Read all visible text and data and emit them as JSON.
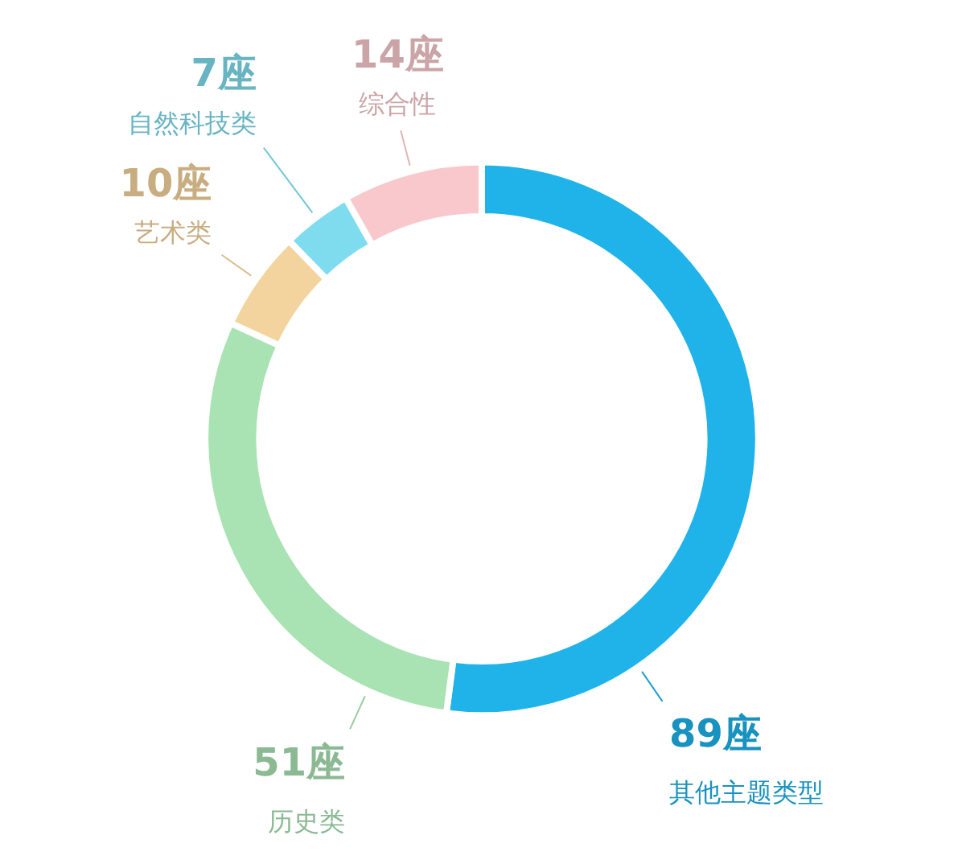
{
  "chart_data": {
    "type": "donut",
    "categories": [
      "其他主题类型",
      "历史类",
      "艺术类",
      "自然科技类",
      "综合性"
    ],
    "values": [
      89,
      51,
      10,
      7,
      14
    ],
    "value_labels": [
      "89座",
      "51座",
      "10座",
      "7座",
      "14座"
    ],
    "colors": [
      "#1fb3ea",
      "#a9e2b3",
      "#f4d49e",
      "#7fdcef",
      "#f8c8cc"
    ]
  }
}
